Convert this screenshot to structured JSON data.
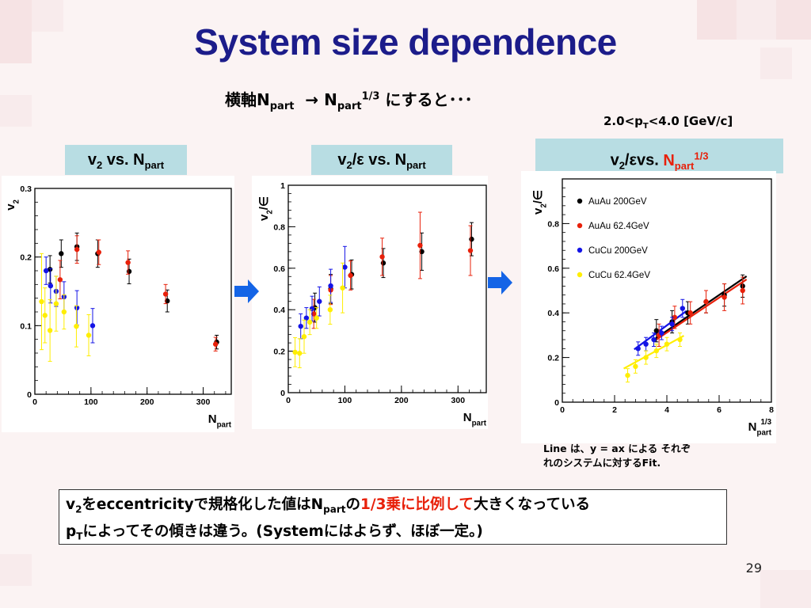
{
  "slide": {
    "title": "System size dependence",
    "subtitle": {
      "pre": "横軸N",
      "sub1": "part",
      "arrow": "→ N",
      "sub2": "part",
      "sup": "1/3",
      "post": " にすると･･･"
    },
    "pt_range": {
      "pre": "2.0<p",
      "sub": "T",
      "post": "<4.0 [GeV/c]"
    },
    "panel_labels": [
      {
        "pre": "v",
        "sub1": "2",
        "mid": " vs. N",
        "sub2": "part"
      },
      {
        "pre": "v",
        "sub1": "2",
        "mid": "/ε vs. N",
        "sub2": "part"
      },
      {
        "pre": "v",
        "sub1": "2",
        "mid": "/εvs. ",
        "red_n": "N",
        "red_sub": "part",
        "red_sup": "1/3"
      }
    ],
    "fit_note": [
      "Line は、y = ax による それぞ",
      "れのシステムに対するFit."
    ],
    "summary": {
      "line1_a": "v",
      "line1_sub": "2",
      "line1_b": "をeccentricityで規格化した値はN",
      "line1_sub2": "part",
      "line1_c": "の",
      "line1_red": "1/3乗に比例して",
      "line1_d": "大きくなっている",
      "line2_a": "p",
      "line2_sub": "T",
      "line2_b": "によってその傾きは違う。(Systemにはよらず、ほぼ一定。)"
    },
    "page_number": "29",
    "colors": {
      "title": "#1c1c8a",
      "label_bg": "#b8dde3",
      "arrow": "#1464e6",
      "highlight": "#e8200a"
    }
  },
  "chart_data": [
    {
      "type": "scatter",
      "title": "",
      "xlabel": "N_part",
      "ylabel": "v_2",
      "xlim": [
        0,
        350
      ],
      "ylim": [
        0,
        0.3
      ],
      "xticks": [
        0,
        100,
        200,
        300
      ],
      "yticks": [
        0,
        0.1,
        0.2,
        0.3
      ],
      "xtick_labels": [
        "0",
        "100",
        "200",
        "300"
      ],
      "ytick_labels": [
        "0",
        "0.1",
        "0.2",
        "0.3"
      ],
      "series": [
        {
          "color": "#000000",
          "points": [
            [
              27,
              0.182,
              0.02
            ],
            [
              47,
              0.205,
              0.02
            ],
            [
              75,
              0.215,
              0.02
            ],
            [
              112,
              0.205,
              0.02
            ],
            [
              168,
              0.179,
              0.018
            ],
            [
              236,
              0.136,
              0.016
            ],
            [
              324,
              0.076,
              0.01
            ]
          ]
        },
        {
          "color": "#e8200a",
          "points": [
            [
              45,
              0.167,
              0.028
            ],
            [
              75,
              0.211,
              0.02
            ],
            [
              114,
              0.207,
              0.018
            ],
            [
              166,
              0.192,
              0.017
            ],
            [
              233,
              0.146,
              0.014
            ],
            [
              322,
              0.073,
              0.01
            ]
          ]
        },
        {
          "color": "#1414e6",
          "points": [
            [
              20,
              0.18,
              0.02
            ],
            [
              28,
              0.158,
              0.025
            ],
            [
              38,
              0.15,
              0.022
            ],
            [
              52,
              0.142,
              0.022
            ],
            [
              75,
              0.126,
              0.025
            ],
            [
              103,
              0.1,
              0.025
            ]
          ]
        },
        {
          "color": "#ffee00",
          "points": [
            [
              12,
              0.135,
              0.07
            ],
            [
              18,
              0.115,
              0.04
            ],
            [
              27,
              0.093,
              0.045
            ],
            [
              38,
              0.132,
              0.04
            ],
            [
              52,
              0.12,
              0.025
            ],
            [
              74,
              0.099,
              0.03
            ],
            [
              96,
              0.086,
              0.03
            ]
          ]
        }
      ]
    },
    {
      "type": "scatter",
      "title": "",
      "xlabel": "N_part",
      "ylabel": "v_2/∈",
      "xlim": [
        0,
        350
      ],
      "ylim": [
        0,
        1.0
      ],
      "xticks": [
        0,
        100,
        200,
        300
      ],
      "yticks": [
        0,
        0.2,
        0.4,
        0.6,
        0.8,
        1.0
      ],
      "xtick_labels": [
        "0",
        "100",
        "200",
        "300"
      ],
      "ytick_labels": [
        "0",
        "0.2",
        "0.4",
        "0.6",
        "0.8",
        "1"
      ],
      "series": [
        {
          "color": "#000000",
          "points": [
            [
              47,
              0.41,
              0.07
            ],
            [
              75,
              0.5,
              0.07
            ],
            [
              112,
              0.57,
              0.07
            ],
            [
              168,
              0.625,
              0.07
            ],
            [
              236,
              0.68,
              0.09
            ],
            [
              324,
              0.74,
              0.08
            ]
          ]
        },
        {
          "color": "#e8200a",
          "points": [
            [
              45,
              0.38,
              0.07
            ],
            [
              75,
              0.495,
              0.07
            ],
            [
              110,
              0.565,
              0.07
            ],
            [
              166,
              0.655,
              0.09
            ],
            [
              233,
              0.71,
              0.16
            ],
            [
              322,
              0.685,
              0.12
            ]
          ]
        },
        {
          "color": "#1414e6",
          "points": [
            [
              22,
              0.32,
              0.06
            ],
            [
              32,
              0.36,
              0.05
            ],
            [
              42,
              0.405,
              0.06
            ],
            [
              55,
              0.44,
              0.07
            ],
            [
              75,
              0.515,
              0.08
            ],
            [
              100,
              0.605,
              0.1
            ]
          ]
        },
        {
          "color": "#ffee00",
          "points": [
            [
              12,
              0.195,
              0.07
            ],
            [
              20,
              0.19,
              0.07
            ],
            [
              28,
              0.27,
              0.08
            ],
            [
              38,
              0.34,
              0.06
            ],
            [
              50,
              0.36,
              0.05
            ],
            [
              74,
              0.4,
              0.07
            ],
            [
              96,
              0.505,
              0.12
            ]
          ]
        }
      ]
    },
    {
      "type": "scatter",
      "title": "",
      "xlabel": "N_part^(1/3)",
      "ylabel": "v_2/∈",
      "xlim": [
        0,
        8
      ],
      "ylim": [
        0,
        1.0
      ],
      "xticks": [
        0,
        2,
        4,
        6,
        8
      ],
      "yticks": [
        0,
        0.2,
        0.4,
        0.6,
        0.8
      ],
      "xtick_labels": [
        "0",
        "2",
        "4",
        "6",
        "8"
      ],
      "ytick_labels": [
        "0",
        "0.2",
        "0.4",
        "0.6",
        "0.8"
      ],
      "legend_position": "top-left",
      "series": [
        {
          "name": "AuAu 200GeV",
          "color": "#000000",
          "points": [
            [
              3.6,
              0.32,
              0.05
            ],
            [
              4.2,
              0.36,
              0.05
            ],
            [
              4.8,
              0.4,
              0.05
            ],
            [
              5.5,
              0.45,
              0.05
            ],
            [
              6.2,
              0.48,
              0.05
            ],
            [
              6.9,
              0.52,
              0.05
            ]
          ],
          "fit_slope": 0.08
        },
        {
          "name": "AuAu 62.4GeV",
          "color": "#e8200a",
          "points": [
            [
              3.7,
              0.3,
              0.05
            ],
            [
              4.3,
              0.38,
              0.05
            ],
            [
              4.9,
              0.4,
              0.05
            ],
            [
              5.5,
              0.45,
              0.05
            ],
            [
              6.2,
              0.47,
              0.06
            ],
            [
              6.9,
              0.5,
              0.06
            ]
          ],
          "fit_slope": 0.078
        },
        {
          "name": "CuCu 200GeV",
          "color": "#1414e6",
          "points": [
            [
              2.9,
              0.24,
              0.03
            ],
            [
              3.2,
              0.26,
              0.03
            ],
            [
              3.5,
              0.28,
              0.03
            ],
            [
              3.8,
              0.31,
              0.03
            ],
            [
              4.2,
              0.35,
              0.03
            ],
            [
              4.6,
              0.42,
              0.04
            ]
          ],
          "fit_slope": 0.086
        },
        {
          "name": "CuCu 62.4GeV",
          "color": "#ffee00",
          "points": [
            [
              2.5,
              0.12,
              0.03
            ],
            [
              2.8,
              0.16,
              0.03
            ],
            [
              3.2,
              0.2,
              0.03
            ],
            [
              3.6,
              0.23,
              0.03
            ],
            [
              4.0,
              0.26,
              0.03
            ],
            [
              4.5,
              0.28,
              0.03
            ]
          ],
          "fit_slope": 0.064
        }
      ]
    }
  ]
}
